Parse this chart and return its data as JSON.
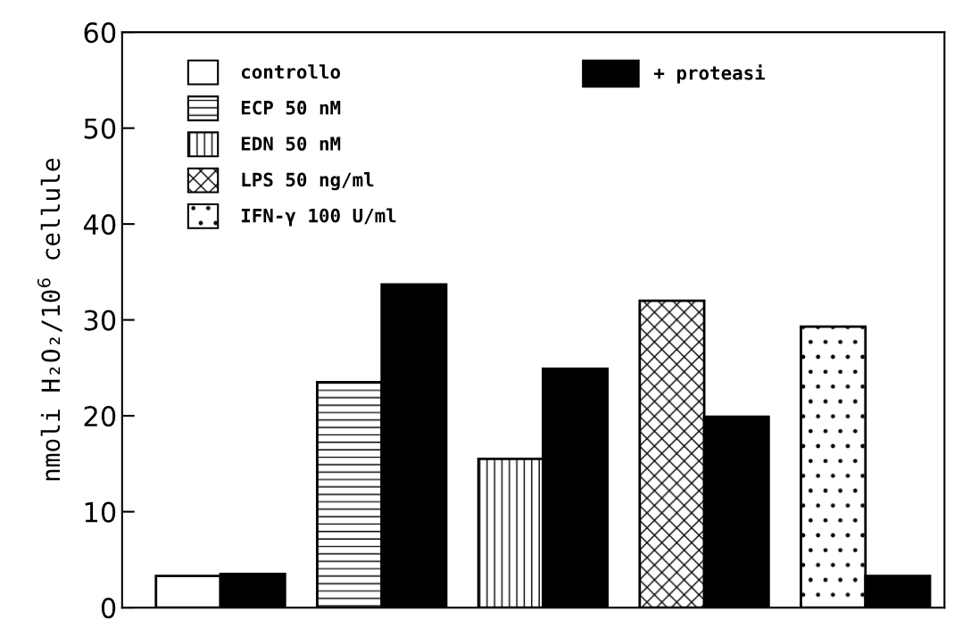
{
  "chart_data": {
    "type": "bar",
    "ylabel": "nmoli H₂O₂/10$^{6}$ cellule",
    "categories": [
      null,
      null,
      null,
      null,
      null
    ],
    "series": [
      {
        "name": "controllo",
        "color": "#ffffff",
        "values": [
          3.3,
          null,
          null,
          null,
          null
        ]
      },
      {
        "name": "ECP 50 nM",
        "color": "#ffffff",
        "values": [
          null,
          23.5,
          null,
          null,
          null
        ]
      },
      {
        "name": "EDN 50 nM",
        "color": "#ffffff",
        "values": [
          null,
          null,
          15.5,
          null,
          null
        ]
      },
      {
        "name": "LPS 50 ng/ml",
        "color": "#ffffff",
        "values": [
          null,
          null,
          null,
          32.0,
          null
        ]
      },
      {
        "name": "IFN-γ 100 U/ml",
        "color": "#ffffff",
        "values": [
          null,
          null,
          null,
          null,
          29.3
        ]
      },
      {
        "name": "+ proteasi",
        "color": "#000000",
        "values": [
          3.5,
          33.7,
          24.9,
          19.9,
          3.3
        ]
      }
    ],
    "ylim": [
      0,
      60
    ],
    "yticks": [
      0,
      10,
      20,
      30,
      40,
      50,
      60
    ],
    "grid": false,
    "legend": "top left"
  }
}
